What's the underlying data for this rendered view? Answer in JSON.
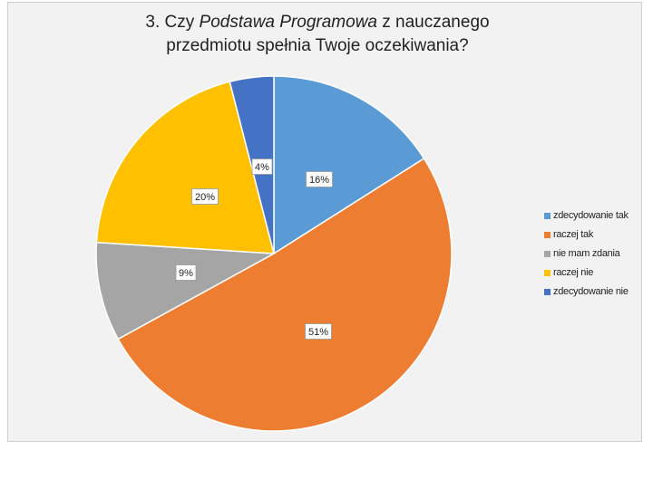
{
  "chart_data": {
    "type": "pie",
    "title": {
      "prefix": "3. Czy ",
      "italic": "Podstawa Programowa",
      "suffix": " z nauczanego",
      "line2": "przedmiotu spełnia Twoje oczekiwania?"
    },
    "slices": [
      {
        "name": "zdecydowanie tak",
        "value": 16,
        "label": "16%",
        "color": "#5b9bd5"
      },
      {
        "name": "raczej tak",
        "value": 51,
        "label": "51%",
        "color": "#ed7d31"
      },
      {
        "name": "nie mam zdania",
        "value": 9,
        "label": "9%",
        "color": "#a5a5a5"
      },
      {
        "name": "raczej nie",
        "value": 20,
        "label": "20%",
        "color": "#ffc000"
      },
      {
        "name": "zdecydowanie nie",
        "value": 4,
        "label": "4%",
        "color": "#4472c4"
      }
    ],
    "start_angle_deg": 0,
    "direction": "clockwise",
    "legend_position": "right"
  }
}
